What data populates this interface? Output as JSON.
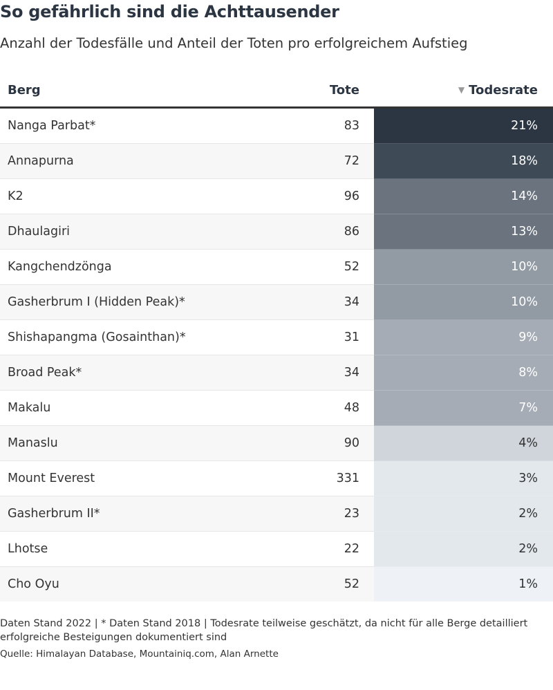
{
  "title": "So gefährlich sind die Achttausender",
  "subtitle": "Anzahl der Todesfälle und Anteil der Toten pro erfolgreichem Aufstieg",
  "chart_data": {
    "type": "table",
    "columns": [
      "Berg",
      "Tote",
      "Todesrate"
    ],
    "sort": {
      "column": "Todesrate",
      "direction": "descending",
      "icon": "sort-down-icon"
    },
    "rows": [
      {
        "berg": "Nanga Parbat*",
        "tote": 83,
        "todesrate": 21
      },
      {
        "berg": "Annapurna",
        "tote": 72,
        "todesrate": 18
      },
      {
        "berg": "K2",
        "tote": 96,
        "todesrate": 14
      },
      {
        "berg": "Dhaulagiri",
        "tote": 86,
        "todesrate": 13
      },
      {
        "berg": "Kangchendzönga",
        "tote": 52,
        "todesrate": 10
      },
      {
        "berg": "Gasherbrum I (Hidden Peak)*",
        "tote": 34,
        "todesrate": 10
      },
      {
        "berg": "Shishapangma (Gosainthan)*",
        "tote": 31,
        "todesrate": 9
      },
      {
        "berg": "Broad Peak*",
        "tote": 34,
        "todesrate": 8
      },
      {
        "berg": "Makalu",
        "tote": 48,
        "todesrate": 7
      },
      {
        "berg": "Manaslu",
        "tote": 90,
        "todesrate": 4
      },
      {
        "berg": "Mount Everest",
        "tote": 331,
        "todesrate": 3
      },
      {
        "berg": "Gasherbrum II*",
        "tote": 23,
        "todesrate": 2
      },
      {
        "berg": "Lhotse",
        "tote": 22,
        "todesrate": 2
      },
      {
        "berg": "Cho Oyu",
        "tote": 52,
        "todesrate": 1
      }
    ],
    "rate_unit": "%",
    "heat_colors": [
      "#2c3542",
      "#3f4a57",
      "#6b737e",
      "#929aa3",
      "#a5acb5",
      "#d0d5db",
      "#e3e8ec",
      "#eef2f6"
    ]
  },
  "notes": "Daten Stand 2022 | * Daten Stand 2018 | Todesrate teilweise geschätzt, da nicht für alle Berge detailliert erfolgreiche Besteigungen dokumentiert sind",
  "source": "Quelle: Himalayan Database, Mountainiq.com, Alan Arnette"
}
